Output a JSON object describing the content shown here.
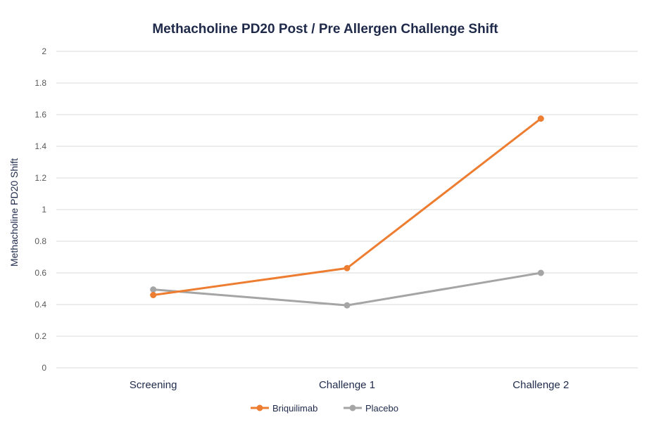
{
  "chart_data": {
    "type": "line",
    "title": "Methacholine PD20 Post / Pre Allergen Challenge Shift",
    "xlabel": "",
    "ylabel": "Methacholine PD20 Shift",
    "categories": [
      "Screening",
      "Challenge 1",
      "Challenge 2"
    ],
    "ylim": [
      0,
      2
    ],
    "yticks": [
      0,
      0.2,
      0.4,
      0.6,
      0.8,
      1,
      1.2,
      1.4,
      1.6,
      1.8,
      2
    ],
    "ytick_labels": [
      "0",
      "0.2",
      "0.4",
      "0.6",
      "0.8",
      "1",
      "1.2",
      "1.4",
      "1.6",
      "1.8",
      "2"
    ],
    "grid": true,
    "legend_position": "bottom",
    "series": [
      {
        "name": "Briquilimab",
        "color": "#ed7d31",
        "values": [
          0.46,
          0.63,
          1.575
        ]
      },
      {
        "name": "Placebo",
        "color": "#a5a5a5",
        "values": [
          0.495,
          0.395,
          0.6
        ]
      }
    ]
  }
}
